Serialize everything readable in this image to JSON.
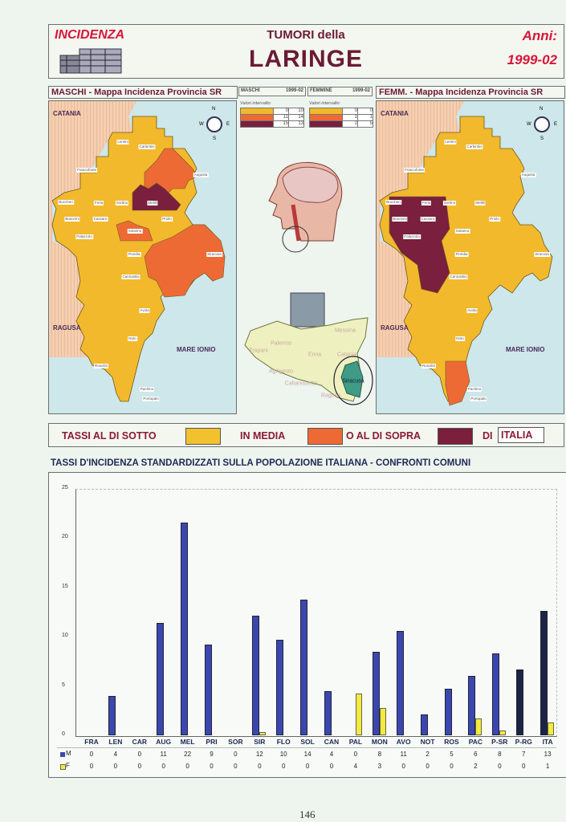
{
  "header": {
    "section": "INCIDENZA",
    "title_top": "TUMORI della",
    "title_main": "LARINGE",
    "years_label": "Anni:",
    "years": "1999-02"
  },
  "maps": {
    "male_title": "MASCHI - Mappa Incidenza Provincia SR",
    "female_title": "FEMM. - Mappa Incidenza Provincia SR",
    "north_region": "CATANIA",
    "south_region": "RAGUSA",
    "sea": "MARE IONIO",
    "compass": [
      "N",
      "W",
      "E",
      "S"
    ],
    "towns": [
      "Lentini",
      "Carlentini",
      "Francofonte",
      "Augusta",
      "Buccheri",
      "Ferla",
      "Sortino",
      "Melilli",
      "Buscemi",
      "Cassaro",
      "Priolo",
      "Solarino",
      "Palazzolo",
      "Floridia",
      "Siracusa",
      "Canicattini",
      "Avola",
      "Noto",
      "Rosolini",
      "Pachino",
      "Portopalo"
    ]
  },
  "legend_tables": {
    "male": {
      "label": "MASCHI",
      "years": "1999-02",
      "caption": "Valori intervallo:",
      "rows": [
        [
          "0",
          "10"
        ],
        [
          "11",
          "14"
        ],
        [
          "15",
          "13"
        ]
      ]
    },
    "female": {
      "label": "FEMMINE",
      "years": "1999-02",
      "caption": "Valori intervallo:",
      "rows": [
        [
          "0",
          "0"
        ],
        [
          "1",
          "1"
        ],
        [
          "2",
          "5"
        ]
      ]
    },
    "colors": [
      "#f0b82a",
      "#ee6a35",
      "#7a1f3d"
    ]
  },
  "sicily_map": {
    "provinces": [
      "Messina",
      "Palermo",
      "Trapani",
      "Enna",
      "Catania",
      "Agrigento",
      "Caltanissetta",
      "Siracusa",
      "Ragusa"
    ]
  },
  "legend_bar": {
    "below": "TASSI AL DI SOTTO",
    "average": "IN MEDIA",
    "above": "O AL DI SOPRA",
    "of": "DI",
    "italy": "ITALIA"
  },
  "chart_title": "TASSI D'INCIDENZA STANDARDIZZATI SULLA POPOLAZIONE ITALIANA - CONFRONTI COMUNI",
  "chart_data": {
    "type": "bar",
    "categories": [
      "FRA",
      "LEN",
      "CAR",
      "AUG",
      "MEL",
      "PRI",
      "SOR",
      "SIR",
      "FLO",
      "SOL",
      "CAN",
      "PAL",
      "MON",
      "AVO",
      "NOT",
      "ROS",
      "PAC",
      "P-SR",
      "P-RG",
      "ITA"
    ],
    "series": [
      {
        "name": "M",
        "color": "#3b47b0",
        "values": [
          0,
          4.0,
          0,
          11.4,
          21.6,
          9.2,
          0,
          12.1,
          9.7,
          13.8,
          4.5,
          0,
          8.5,
          10.6,
          2.1,
          4.7,
          6.0,
          8.3,
          6.7,
          12.6
        ],
        "table": [
          "0",
          "4",
          "0",
          "11",
          "22",
          "9",
          "0",
          "12",
          "10",
          "14",
          "4",
          "0",
          "8",
          "11",
          "2",
          "5",
          "6",
          "8",
          "7",
          "13"
        ]
      },
      {
        "name": "F",
        "color": "#f4ea3a",
        "values": [
          0,
          0,
          0,
          0,
          0,
          0,
          0,
          0.3,
          0,
          0,
          0,
          4.2,
          2.8,
          0,
          0,
          0,
          1.7,
          0.5,
          0,
          1.3
        ],
        "table": [
          "0",
          "0",
          "0",
          "0",
          "0",
          "0",
          "0",
          "0",
          "0",
          "0",
          "0",
          "4",
          "3",
          "0",
          "0",
          "0",
          "2",
          "0",
          "0",
          "1"
        ]
      }
    ],
    "highlight_color": "#1a2444",
    "yticks": [
      "0",
      "5",
      "10",
      "15",
      "20",
      "25"
    ],
    "ylim": [
      0,
      25
    ],
    "grid": false
  },
  "page_number": "146"
}
